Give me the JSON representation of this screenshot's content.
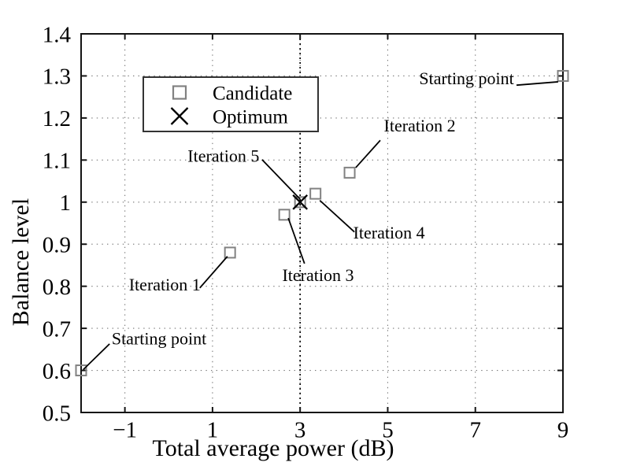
{
  "figure": {
    "background": "#ffffff",
    "border_color": "#141414"
  },
  "chart_data": {
    "type": "scatter",
    "title": "",
    "xlabel": "Total average power (dB)",
    "ylabel": "Balance level",
    "xlim": [
      -2,
      9
    ],
    "ylim": [
      0.5,
      1.4
    ],
    "xticks": [
      {
        "value": -1,
        "label": "−1"
      },
      {
        "value": 1,
        "label": "1"
      },
      {
        "value": 3,
        "label": "3"
      },
      {
        "value": 5,
        "label": "5"
      },
      {
        "value": 7,
        "label": "7"
      },
      {
        "value": 9,
        "label": "9"
      }
    ],
    "yticks": [
      {
        "value": 0.5,
        "label": "0.5"
      },
      {
        "value": 0.6,
        "label": "0.6"
      },
      {
        "value": 0.7,
        "label": "0.7"
      },
      {
        "value": 0.8,
        "label": "0.8"
      },
      {
        "value": 0.9,
        "label": "0.9"
      },
      {
        "value": 1.0,
        "label": "1"
      },
      {
        "value": 1.1,
        "label": "1.1"
      },
      {
        "value": 1.2,
        "label": "1.2"
      },
      {
        "value": 1.3,
        "label": "1.3"
      },
      {
        "value": 1.4,
        "label": "1.4"
      }
    ],
    "grid": {
      "show": true,
      "x_values": [
        -1,
        1,
        3,
        5,
        7
      ],
      "y_values": [
        0.6,
        0.7,
        0.8,
        0.9,
        1.0,
        1.1,
        1.2,
        1.3
      ],
      "color": "#777777",
      "style": "dotted"
    },
    "reference_line": {
      "axis": "x",
      "value": 3,
      "color": "#000000",
      "style": "dotted"
    },
    "series": [
      {
        "name": "Candidate",
        "marker": "square",
        "color": "#828282",
        "points": [
          {
            "x": -2.0,
            "y": 0.6,
            "label": "Starting point"
          },
          {
            "x": 1.4,
            "y": 0.88,
            "label": "Iteration 1"
          },
          {
            "x": 2.64,
            "y": 0.97,
            "label": "Iteration 3"
          },
          {
            "x": 3.0,
            "y": 1.0,
            "label": "Iteration 5"
          },
          {
            "x": 3.35,
            "y": 1.02,
            "label": "Iteration 4"
          },
          {
            "x": 4.13,
            "y": 1.07,
            "label": "Iteration 2"
          },
          {
            "x": 9.0,
            "y": 1.3,
            "label": "Starting point"
          }
        ]
      },
      {
        "name": "Optimum",
        "marker": "x",
        "color": "#000000",
        "points": [
          {
            "x": 3.0,
            "y": 1.0
          }
        ]
      }
    ],
    "annotations": [
      {
        "text": "Starting point",
        "x": 6.8,
        "y": 1.295,
        "line": [
          [
            7.94,
            1.278
          ],
          [
            8.89,
            1.286
          ]
        ]
      },
      {
        "text": "Iteration 2",
        "x": 5.73,
        "y": 1.183,
        "line": [
          [
            4.83,
            1.147
          ],
          [
            4.27,
            1.082
          ]
        ]
      },
      {
        "text": "Iteration 5",
        "x": 1.25,
        "y": 1.111,
        "line": [
          [
            2.13,
            1.101
          ],
          [
            3.0,
            1.007
          ]
        ]
      },
      {
        "text": "Iteration 4",
        "x": 5.03,
        "y": 0.928,
        "line": [
          [
            3.45,
            1.004
          ],
          [
            4.24,
            0.929
          ]
        ]
      },
      {
        "text": "Iteration 3",
        "x": 3.41,
        "y": 0.827,
        "line": [
          [
            2.73,
            0.962
          ],
          [
            3.1,
            0.854
          ]
        ]
      },
      {
        "text": "Iteration 1",
        "x": -0.09,
        "y": 0.805,
        "line": [
          [
            0.71,
            0.796
          ],
          [
            1.34,
            0.871
          ]
        ]
      },
      {
        "text": "Starting point",
        "x": -0.22,
        "y": 0.676,
        "line": [
          [
            -1.35,
            0.663
          ],
          [
            -1.95,
            0.602
          ]
        ]
      }
    ],
    "legend": {
      "position": "upper-left-inside",
      "border_color": "#333333",
      "entries": [
        {
          "label": "Candidate",
          "marker": "square",
          "color": "#828282"
        },
        {
          "label": "Optimum",
          "marker": "x",
          "color": "#000000"
        }
      ]
    }
  }
}
